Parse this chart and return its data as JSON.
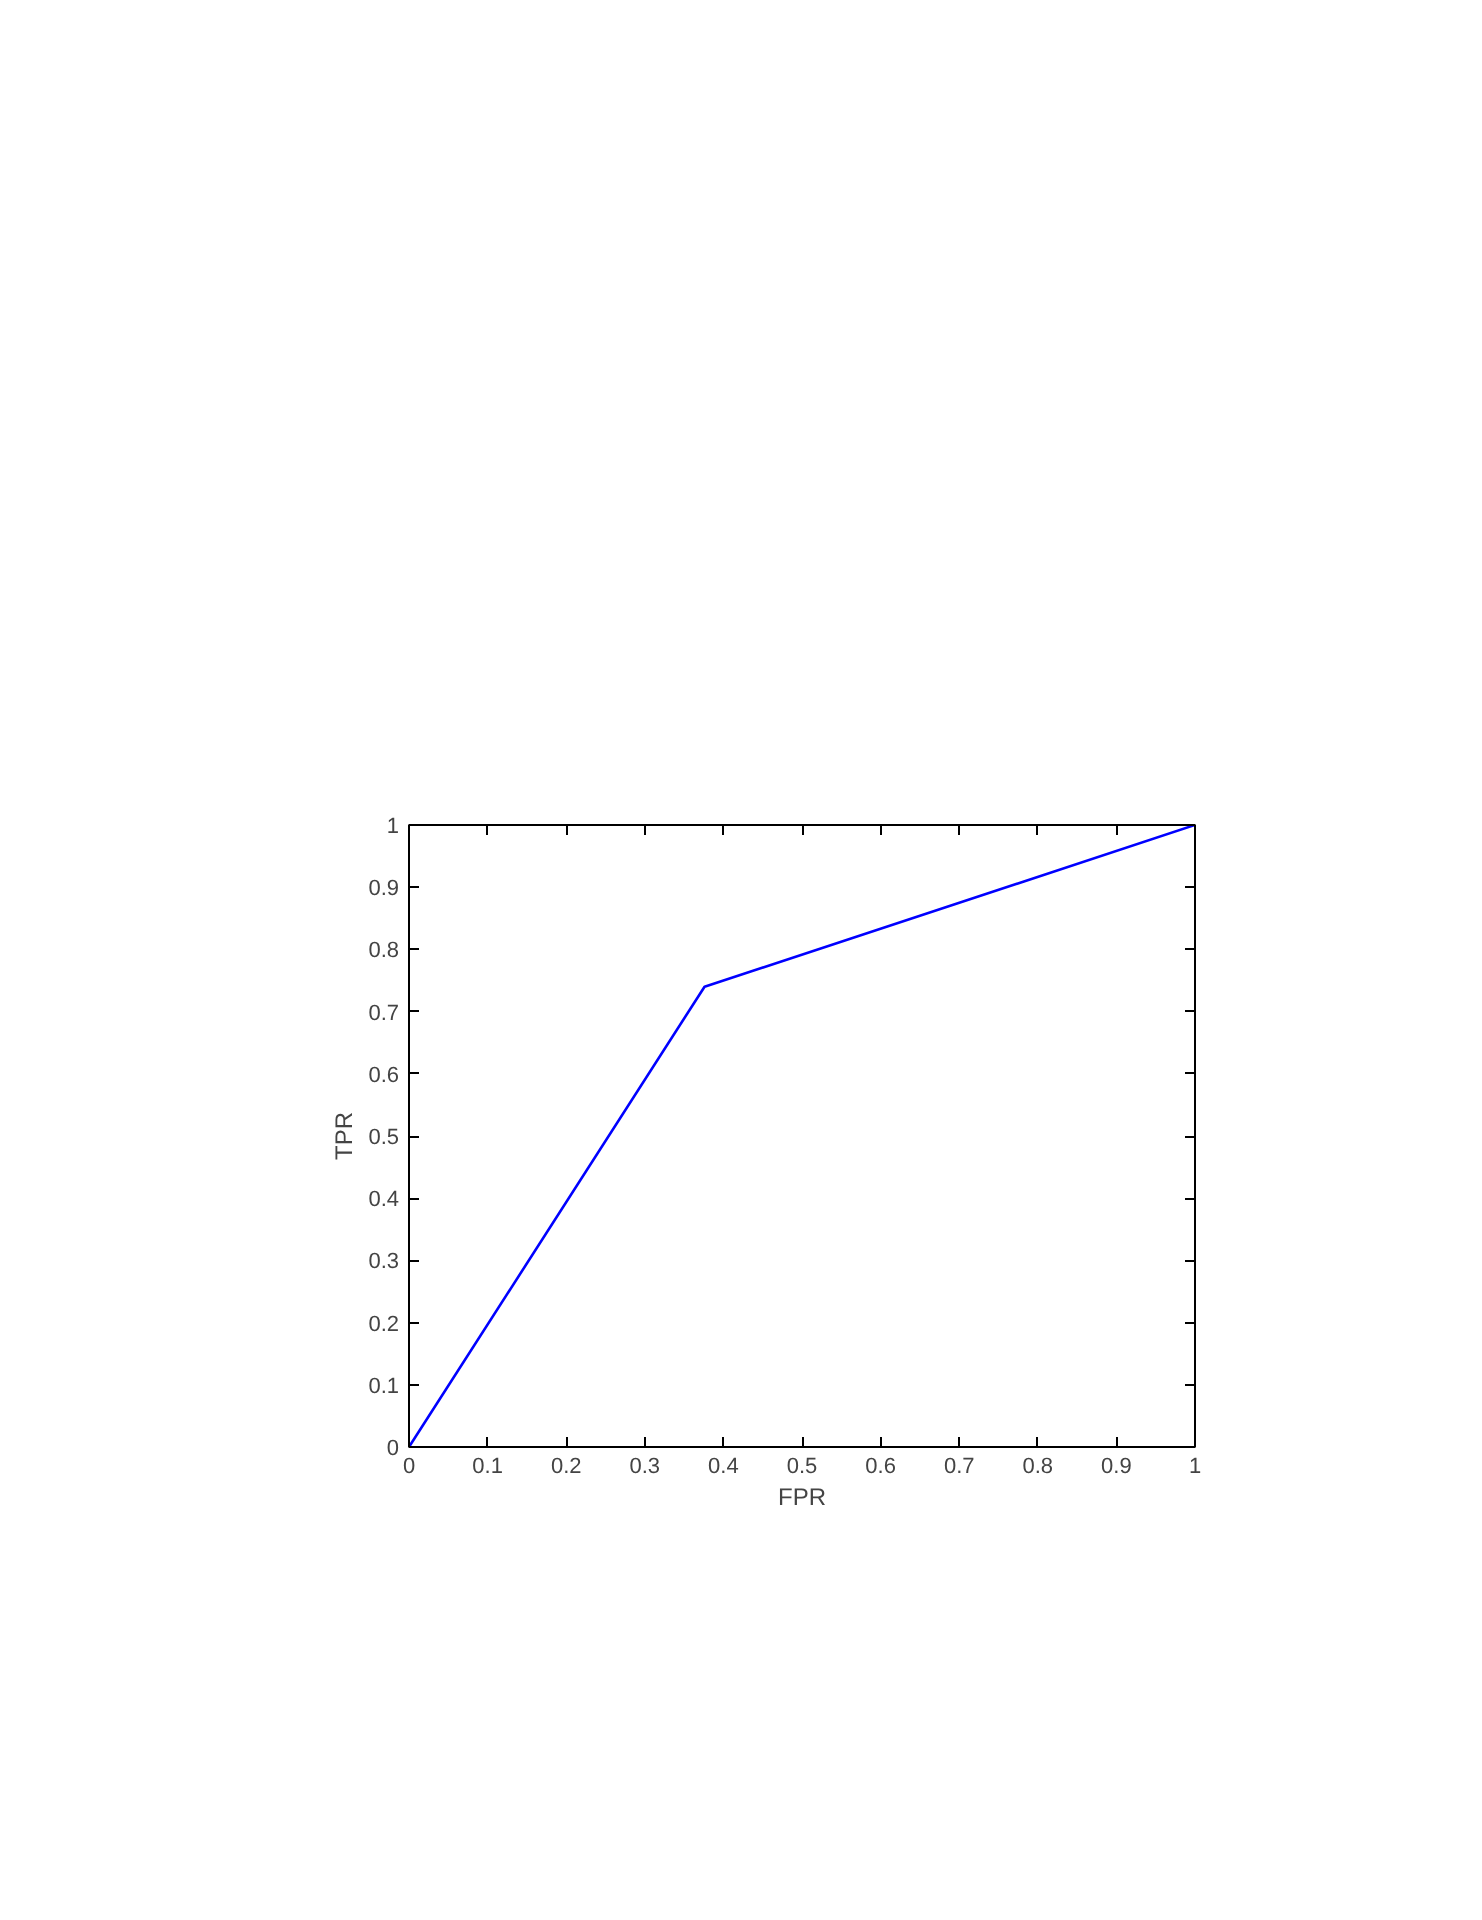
{
  "chart_data": {
    "type": "line",
    "xlabel": "FPR",
    "ylabel": "TPR",
    "x": [
      0,
      0.376,
      1
    ],
    "series": [
      {
        "color": "#0000ff",
        "values": [
          0,
          0.74,
          1
        ]
      }
    ],
    "xlim": [
      0,
      1
    ],
    "ylim": [
      0,
      1
    ],
    "xticks": [
      0,
      0.1,
      0.2,
      0.3,
      0.4,
      0.5,
      0.6,
      0.7,
      0.8,
      0.9,
      1
    ],
    "yticks": [
      0,
      0.1,
      0.2,
      0.3,
      0.4,
      0.5,
      0.6,
      0.7,
      0.8,
      0.9,
      1
    ],
    "grid": false
  }
}
